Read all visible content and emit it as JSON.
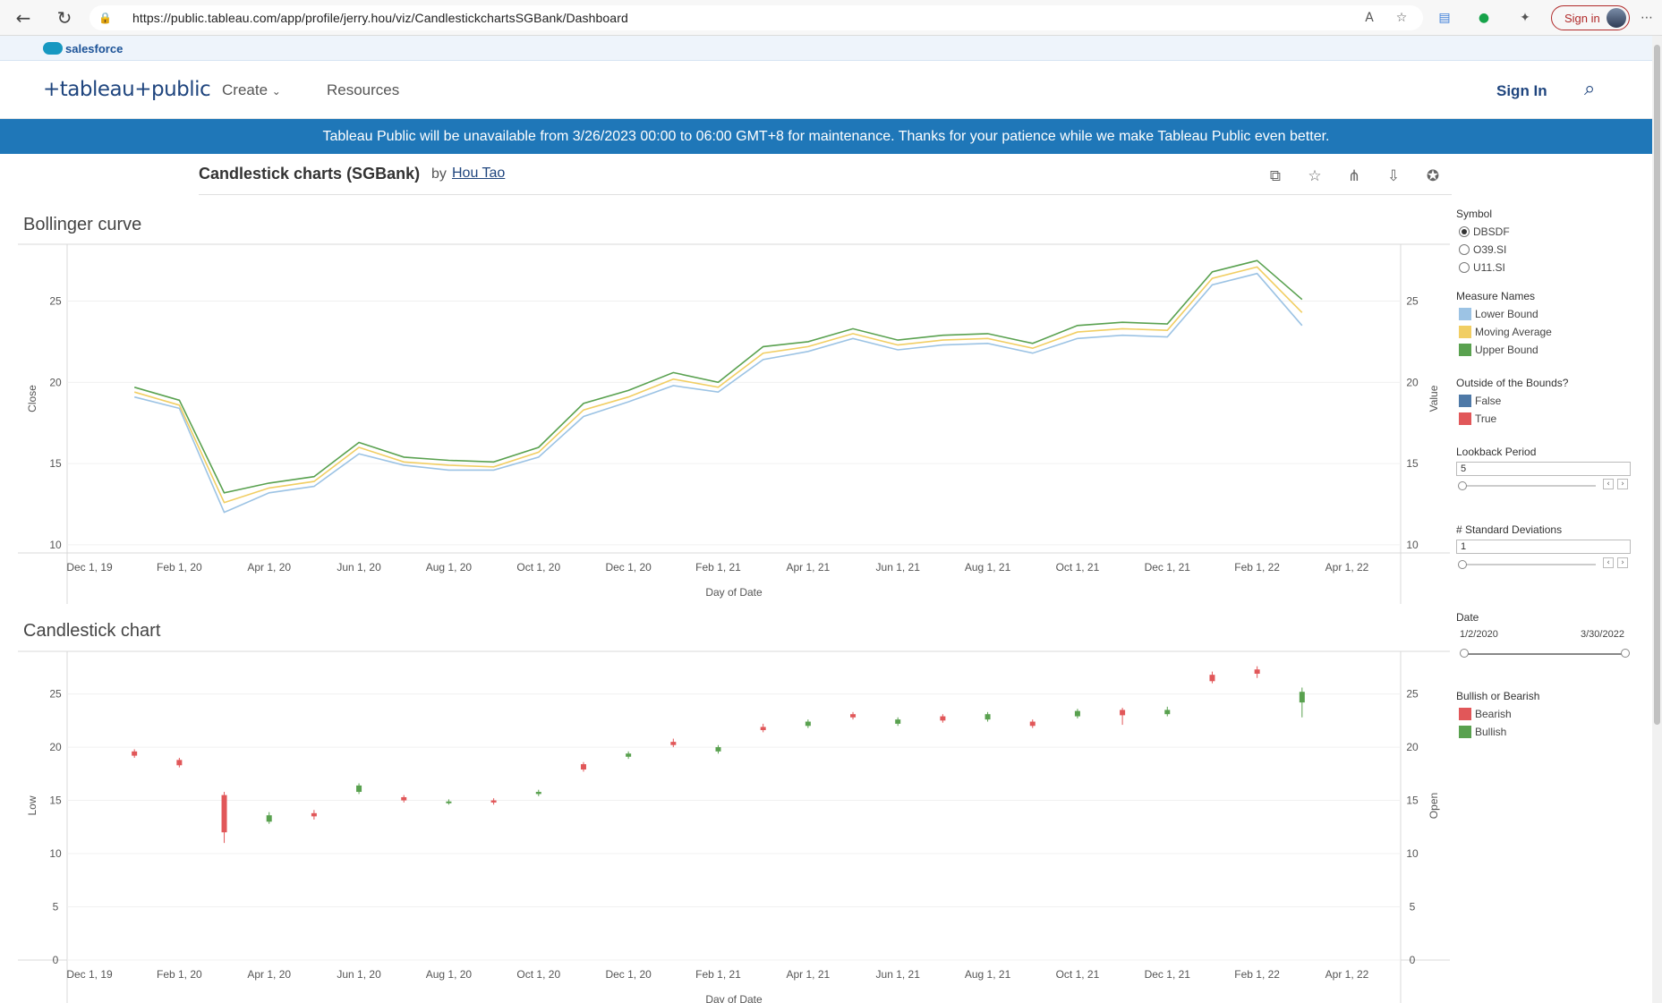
{
  "browser": {
    "url": "https://public.tableau.com/app/profile/jerry.hou/viz/CandlestickchartsSGBank/Dashboard",
    "signin_label": "Sign in"
  },
  "salesforce": {
    "label": "salesforce"
  },
  "header": {
    "logo": "+tableau+public",
    "nav": {
      "create": "Create",
      "resources": "Resources"
    },
    "signin": "Sign In"
  },
  "banner": {
    "text": "Tableau Public will be unavailable from 3/26/2023 00:00 to 06:00 GMT+8 for maintenance. Thanks for your patience while we make Tableau Public even better."
  },
  "viz": {
    "title": "Candlestick charts (SGBank)",
    "by": "by",
    "author": "Hou Tao"
  },
  "chart_data": [
    {
      "type": "line",
      "title": "Bollinger curve",
      "xlabel": "Day of Date",
      "ylabel": "Close",
      "ylabel_right": "Value",
      "yticks": [
        "25",
        "20",
        "15",
        "10"
      ],
      "ylim": [
        9.5,
        28.5
      ],
      "xticks": [
        "Dec 1, 19",
        "Feb 1, 20",
        "Apr 1, 20",
        "Jun 1, 20",
        "Aug 1, 20",
        "Oct 1, 20",
        "Dec 1, 20",
        "Feb 1, 21",
        "Apr 1, 21",
        "Jun 1, 21",
        "Aug 1, 21",
        "Oct 1, 21",
        "Dec 1, 21",
        "Feb 1, 22",
        "Apr 1, 22"
      ],
      "x": [
        "2020-01",
        "2020-02",
        "2020-03",
        "2020-04",
        "2020-05",
        "2020-06",
        "2020-07",
        "2020-08",
        "2020-09",
        "2020-10",
        "2020-11",
        "2020-12",
        "2021-01",
        "2021-02",
        "2021-03",
        "2021-04",
        "2021-05",
        "2021-06",
        "2021-07",
        "2021-08",
        "2021-09",
        "2021-10",
        "2021-11",
        "2021-12",
        "2022-01",
        "2022-02",
        "2022-03"
      ],
      "series": [
        {
          "name": "Lower Bound",
          "color": "#9cc3e4",
          "values": [
            19.1,
            18.4,
            12.0,
            13.2,
            13.6,
            15.6,
            14.9,
            14.6,
            14.6,
            15.4,
            17.9,
            18.8,
            19.8,
            19.4,
            21.4,
            21.9,
            22.7,
            22.0,
            22.3,
            22.4,
            21.8,
            22.7,
            22.9,
            22.8,
            26.0,
            26.7,
            23.5
          ]
        },
        {
          "name": "Moving Average",
          "color": "#f1ce63",
          "values": [
            19.4,
            18.6,
            12.6,
            13.5,
            13.9,
            16.0,
            15.1,
            14.9,
            14.8,
            15.7,
            18.3,
            19.1,
            20.2,
            19.7,
            21.8,
            22.2,
            23.0,
            22.3,
            22.6,
            22.7,
            22.1,
            23.1,
            23.3,
            23.2,
            26.4,
            27.1,
            24.3
          ]
        },
        {
          "name": "Upper Bound",
          "color": "#59a14f",
          "values": [
            19.7,
            18.9,
            13.2,
            13.8,
            14.2,
            16.3,
            15.4,
            15.2,
            15.1,
            16.0,
            18.7,
            19.5,
            20.6,
            20.0,
            22.2,
            22.5,
            23.3,
            22.6,
            22.9,
            23.0,
            22.4,
            23.5,
            23.7,
            23.6,
            26.8,
            27.5,
            25.1
          ]
        }
      ]
    },
    {
      "type": "bar",
      "title": "Candlestick chart",
      "xlabel": "Day of Date",
      "ylabel": "Low",
      "ylabel_right": "Open",
      "yticks": [
        "25",
        "20",
        "15",
        "10",
        "5",
        "0"
      ],
      "ylim": [
        0,
        29
      ],
      "xticks": [
        "Dec 1, 19",
        "Feb 1, 20",
        "Apr 1, 20",
        "Jun 1, 20",
        "Aug 1, 20",
        "Oct 1, 20",
        "Dec 1, 20",
        "Feb 1, 21",
        "Apr 1, 21",
        "Jun 1, 21",
        "Aug 1, 21",
        "Oct 1, 21",
        "Dec 1, 21",
        "Feb 1, 22",
        "Apr 1, 22"
      ],
      "x": [
        "2020-01",
        "2020-02",
        "2020-03",
        "2020-04",
        "2020-05",
        "2020-06",
        "2020-07",
        "2020-08",
        "2020-09",
        "2020-10",
        "2020-11",
        "2020-12",
        "2021-01",
        "2021-02",
        "2021-03",
        "2021-04",
        "2021-05",
        "2021-06",
        "2021-07",
        "2021-08",
        "2021-09",
        "2021-10",
        "2021-11",
        "2021-12",
        "2022-01",
        "2022-02",
        "2022-03"
      ],
      "candles": [
        {
          "open": 19.6,
          "close": 19.2,
          "low": 19.0,
          "high": 19.8
        },
        {
          "open": 18.8,
          "close": 18.3,
          "low": 18.1,
          "high": 19.0
        },
        {
          "open": 15.5,
          "close": 12.0,
          "low": 11.0,
          "high": 15.8
        },
        {
          "open": 13.0,
          "close": 13.6,
          "low": 12.8,
          "high": 13.9
        },
        {
          "open": 13.8,
          "close": 13.5,
          "low": 13.2,
          "high": 14.1
        },
        {
          "open": 15.8,
          "close": 16.4,
          "low": 15.6,
          "high": 16.6
        },
        {
          "open": 15.3,
          "close": 15.0,
          "low": 14.8,
          "high": 15.5
        },
        {
          "open": 14.8,
          "close": 14.9,
          "low": 14.6,
          "high": 15.1
        },
        {
          "open": 15.0,
          "close": 14.8,
          "low": 14.6,
          "high": 15.2
        },
        {
          "open": 15.6,
          "close": 15.8,
          "low": 15.4,
          "high": 16.0
        },
        {
          "open": 18.4,
          "close": 17.9,
          "low": 17.7,
          "high": 18.6
        },
        {
          "open": 19.1,
          "close": 19.4,
          "low": 18.9,
          "high": 19.6
        },
        {
          "open": 20.5,
          "close": 20.2,
          "low": 20.0,
          "high": 20.8
        },
        {
          "open": 19.6,
          "close": 20.0,
          "low": 19.4,
          "high": 20.2
        },
        {
          "open": 21.9,
          "close": 21.6,
          "low": 21.4,
          "high": 22.2
        },
        {
          "open": 22.0,
          "close": 22.4,
          "low": 21.8,
          "high": 22.6
        },
        {
          "open": 23.1,
          "close": 22.8,
          "low": 22.6,
          "high": 23.3
        },
        {
          "open": 22.2,
          "close": 22.6,
          "low": 22.0,
          "high": 22.8
        },
        {
          "open": 22.9,
          "close": 22.5,
          "low": 22.3,
          "high": 23.1
        },
        {
          "open": 22.6,
          "close": 23.1,
          "low": 22.4,
          "high": 23.3
        },
        {
          "open": 22.4,
          "close": 22.0,
          "low": 21.8,
          "high": 22.6
        },
        {
          "open": 22.9,
          "close": 23.4,
          "low": 22.7,
          "high": 23.6
        },
        {
          "open": 23.5,
          "close": 23.0,
          "low": 22.1,
          "high": 23.7
        },
        {
          "open": 23.1,
          "close": 23.5,
          "low": 22.9,
          "high": 23.8
        },
        {
          "open": 26.8,
          "close": 26.2,
          "low": 26.0,
          "high": 27.1
        },
        {
          "open": 27.3,
          "close": 26.9,
          "low": 26.5,
          "high": 27.6
        },
        {
          "open": 24.2,
          "close": 25.2,
          "low": 22.8,
          "high": 25.6
        }
      ]
    }
  ],
  "sidebar": {
    "symbol": {
      "title": "Symbol",
      "options": [
        "DBSDF",
        "O39.SI",
        "U11.SI"
      ],
      "selected": "DBSDF"
    },
    "measure_names": {
      "title": "Measure Names",
      "items": [
        {
          "label": "Lower Bound",
          "color": "#9cc3e4"
        },
        {
          "label": "Moving Average",
          "color": "#f1ce63"
        },
        {
          "label": "Upper Bound",
          "color": "#59a14f"
        }
      ]
    },
    "outside_bounds": {
      "title": "Outside of the Bounds?",
      "items": [
        {
          "label": "False",
          "color": "#4e79a7"
        },
        {
          "label": "True",
          "color": "#e15759"
        }
      ]
    },
    "lookback": {
      "title": "Lookback Period",
      "value": "5",
      "fraction": 0.0
    },
    "std_dev": {
      "title": "# Standard Deviations",
      "value": "1",
      "fraction": 0.0
    },
    "date": {
      "title": "Date",
      "start": "1/2/2020",
      "end": "3/30/2022"
    },
    "bullish_bearish": {
      "title": "Bullish or Bearish",
      "items": [
        {
          "label": "Bearish",
          "color": "#e15759"
        },
        {
          "label": "Bullish",
          "color": "#59a14f"
        }
      ]
    }
  }
}
